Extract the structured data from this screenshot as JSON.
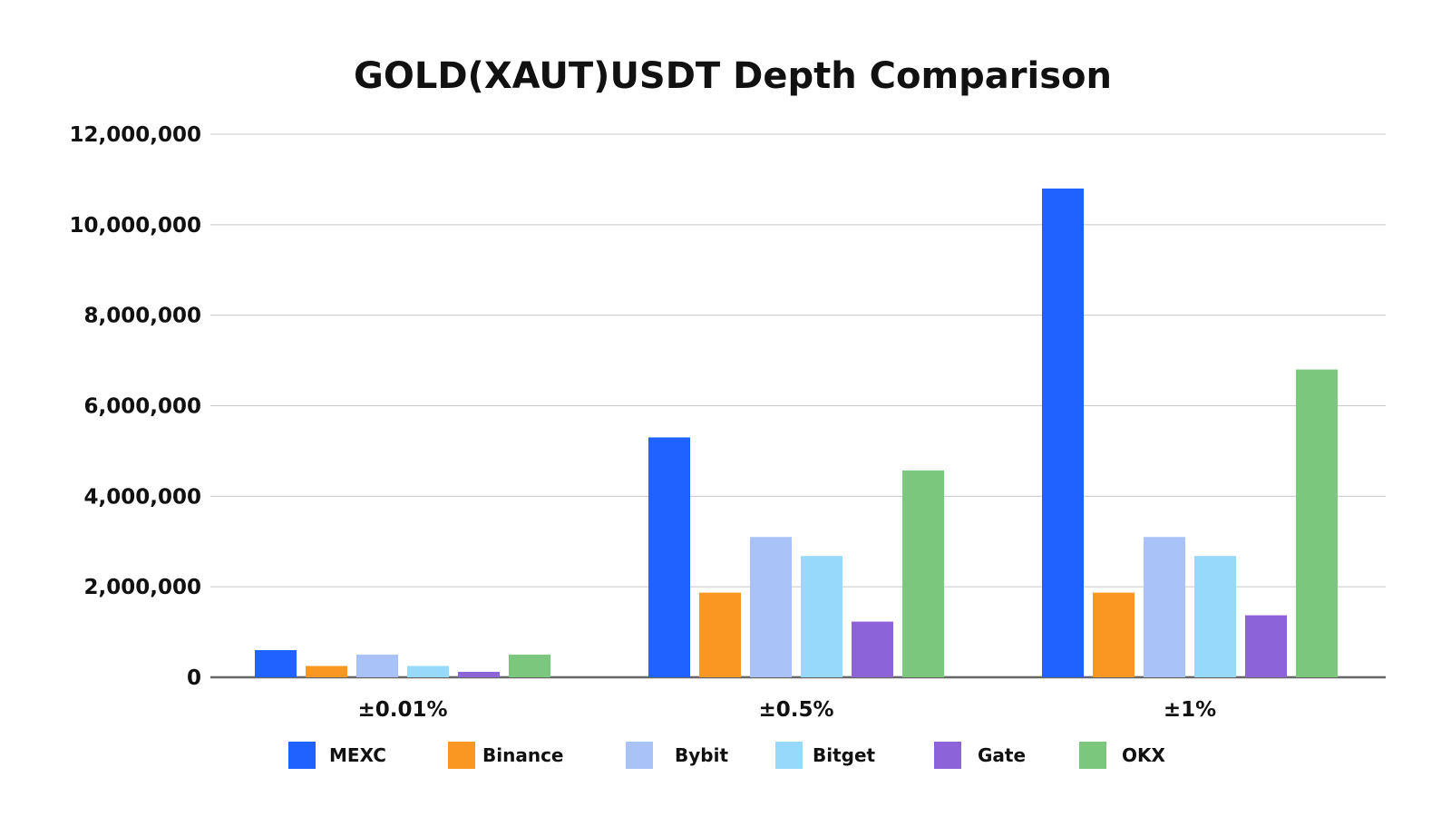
{
  "chart_data": {
    "type": "bar",
    "title": "GOLD(XAUT)USDT Depth Comparison",
    "xlabel": "",
    "ylabel": "",
    "categories": [
      "±0.01%",
      "±0.5%",
      "±1%"
    ],
    "ylim": [
      0,
      12000000
    ],
    "yticks": [
      0,
      2000000,
      4000000,
      6000000,
      8000000,
      10000000,
      12000000
    ],
    "ytick_labels": [
      "0",
      "2,000,000",
      "4,000,000",
      "6,000,000",
      "8,000,000",
      "10,000,000",
      "12,000,000"
    ],
    "grid": true,
    "legend_position": "bottom",
    "series": [
      {
        "name": "MEXC",
        "color": "#1f62ff",
        "values": [
          600000,
          5300000,
          10800000
        ]
      },
      {
        "name": "Binance",
        "color": "#fa9722",
        "values": [
          250000,
          1870000,
          1870000
        ]
      },
      {
        "name": "Bybit",
        "color": "#a9c2f8",
        "values": [
          500000,
          3100000,
          3100000
        ]
      },
      {
        "name": "Bitget",
        "color": "#96d9fb",
        "values": [
          250000,
          2680000,
          2680000
        ]
      },
      {
        "name": "Gate",
        "color": "#8c63d9",
        "values": [
          120000,
          1230000,
          1370000
        ]
      },
      {
        "name": "OKX",
        "color": "#7ac77d",
        "values": [
          500000,
          4570000,
          6800000
        ]
      }
    ]
  }
}
